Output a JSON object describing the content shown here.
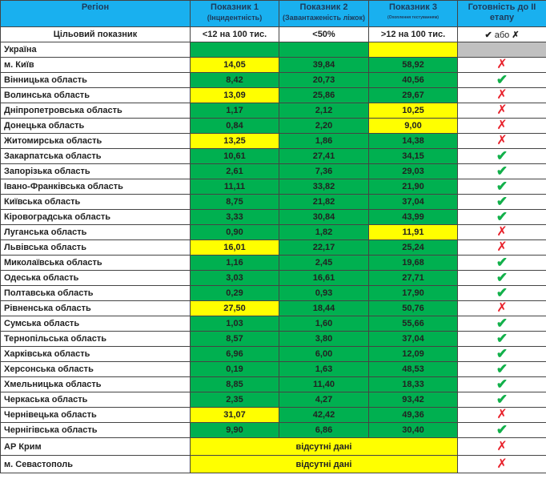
{
  "header": {
    "region": "Регіон",
    "c1": "Показник 1",
    "c1_sub": "(Інцидентність)",
    "c2": "Показник 2",
    "c2_sub": "(Завантаженість ліжок)",
    "c3": "Показник 3",
    "c3_sub": "(Охоплення тестуванням)",
    "c4": "Готовність до II етапу"
  },
  "target": {
    "label": "Цільовий показник",
    "c1": "<12 на 100 тис.",
    "c2": "<50%",
    "c3": ">12 на 100 тис.",
    "c4_check": "✔",
    "c4_or": "або",
    "c4_x": "✗"
  },
  "colors": {
    "green": "#00b050",
    "yellow": "#ffff00",
    "header": "#19b0ef",
    "gray": "#c0c0c0"
  },
  "ukraine": {
    "region": "Україна",
    "status": [
      "green",
      "green",
      "yellow"
    ],
    "ready": "n/a"
  },
  "rows": [
    {
      "region": "м. Київ",
      "v": [
        "14,05",
        "39,84",
        "58,92"
      ],
      "s": [
        "y",
        "g",
        "g"
      ],
      "ready": false
    },
    {
      "region": "Вінницька область",
      "v": [
        "8,42",
        "20,73",
        "40,56"
      ],
      "s": [
        "g",
        "g",
        "g"
      ],
      "ready": true
    },
    {
      "region": "Волинська область",
      "v": [
        "13,09",
        "25,86",
        "29,67"
      ],
      "s": [
        "y",
        "g",
        "g"
      ],
      "ready": false
    },
    {
      "region": "Дніпропетровська область",
      "v": [
        "1,17",
        "2,12",
        "10,25"
      ],
      "s": [
        "g",
        "g",
        "y"
      ],
      "ready": false
    },
    {
      "region": "Донецька область",
      "v": [
        "0,84",
        "2,20",
        "9,00"
      ],
      "s": [
        "g",
        "g",
        "y"
      ],
      "ready": false
    },
    {
      "region": "Житомирська область",
      "v": [
        "13,25",
        "1,86",
        "14,38"
      ],
      "s": [
        "y",
        "g",
        "g"
      ],
      "ready": false
    },
    {
      "region": "Закарпатська область",
      "v": [
        "10,61",
        "27,41",
        "34,15"
      ],
      "s": [
        "g",
        "g",
        "g"
      ],
      "ready": true
    },
    {
      "region": "Запорізька область",
      "v": [
        "2,61",
        "7,36",
        "29,03"
      ],
      "s": [
        "g",
        "g",
        "g"
      ],
      "ready": true
    },
    {
      "region": "Івано-Франківська область",
      "v": [
        "11,11",
        "33,82",
        "21,90"
      ],
      "s": [
        "g",
        "g",
        "g"
      ],
      "ready": true
    },
    {
      "region": "Київська область",
      "v": [
        "8,75",
        "21,82",
        "37,04"
      ],
      "s": [
        "g",
        "g",
        "g"
      ],
      "ready": true
    },
    {
      "region": "Кіровоградська область",
      "v": [
        "3,33",
        "30,84",
        "43,99"
      ],
      "s": [
        "g",
        "g",
        "g"
      ],
      "ready": true
    },
    {
      "region": "Луганська область",
      "v": [
        "0,90",
        "1,82",
        "11,91"
      ],
      "s": [
        "g",
        "g",
        "y"
      ],
      "ready": false
    },
    {
      "region": "Львівська область",
      "v": [
        "16,01",
        "22,17",
        "25,24"
      ],
      "s": [
        "y",
        "g",
        "g"
      ],
      "ready": false
    },
    {
      "region": "Миколаївська область",
      "v": [
        "1,16",
        "2,45",
        "19,68"
      ],
      "s": [
        "g",
        "g",
        "g"
      ],
      "ready": true
    },
    {
      "region": "Одеська область",
      "v": [
        "3,03",
        "16,61",
        "27,71"
      ],
      "s": [
        "g",
        "g",
        "g"
      ],
      "ready": true
    },
    {
      "region": "Полтавська область",
      "v": [
        "0,29",
        "0,93",
        "17,90"
      ],
      "s": [
        "g",
        "g",
        "g"
      ],
      "ready": true
    },
    {
      "region": "Рівненська область",
      "v": [
        "27,50",
        "18,44",
        "50,76"
      ],
      "s": [
        "y",
        "g",
        "g"
      ],
      "ready": false
    },
    {
      "region": "Сумська область",
      "v": [
        "1,03",
        "1,60",
        "55,66"
      ],
      "s": [
        "g",
        "g",
        "g"
      ],
      "ready": true
    },
    {
      "region": "Тернопільська область",
      "v": [
        "8,57",
        "3,80",
        "37,04"
      ],
      "s": [
        "g",
        "g",
        "g"
      ],
      "ready": true
    },
    {
      "region": "Харківська область",
      "v": [
        "6,96",
        "6,00",
        "12,09"
      ],
      "s": [
        "g",
        "g",
        "g"
      ],
      "ready": true
    },
    {
      "region": "Херсонська область",
      "v": [
        "0,19",
        "1,63",
        "48,53"
      ],
      "s": [
        "g",
        "g",
        "g"
      ],
      "ready": true
    },
    {
      "region": "Хмельницька область",
      "v": [
        "8,85",
        "11,40",
        "18,33"
      ],
      "s": [
        "g",
        "g",
        "g"
      ],
      "ready": true
    },
    {
      "region": "Черкаська область",
      "v": [
        "2,35",
        "4,27",
        "93,42"
      ],
      "s": [
        "g",
        "g",
        "g"
      ],
      "ready": true
    },
    {
      "region": "Чернівецька область",
      "v": [
        "31,07",
        "42,42",
        "49,36"
      ],
      "s": [
        "y",
        "g",
        "g"
      ],
      "ready": false
    },
    {
      "region": "Чернігівська область",
      "v": [
        "9,90",
        "6,86",
        "30,40"
      ],
      "s": [
        "g",
        "g",
        "g"
      ],
      "ready": true
    }
  ],
  "nodata": [
    {
      "region": "АР Крим",
      "text": "відсутні дані",
      "ready": false
    },
    {
      "region": "м. Севастополь",
      "text": "відсутні дані",
      "ready": false
    }
  ],
  "marks": {
    "check": "✔",
    "cross": "✗"
  }
}
